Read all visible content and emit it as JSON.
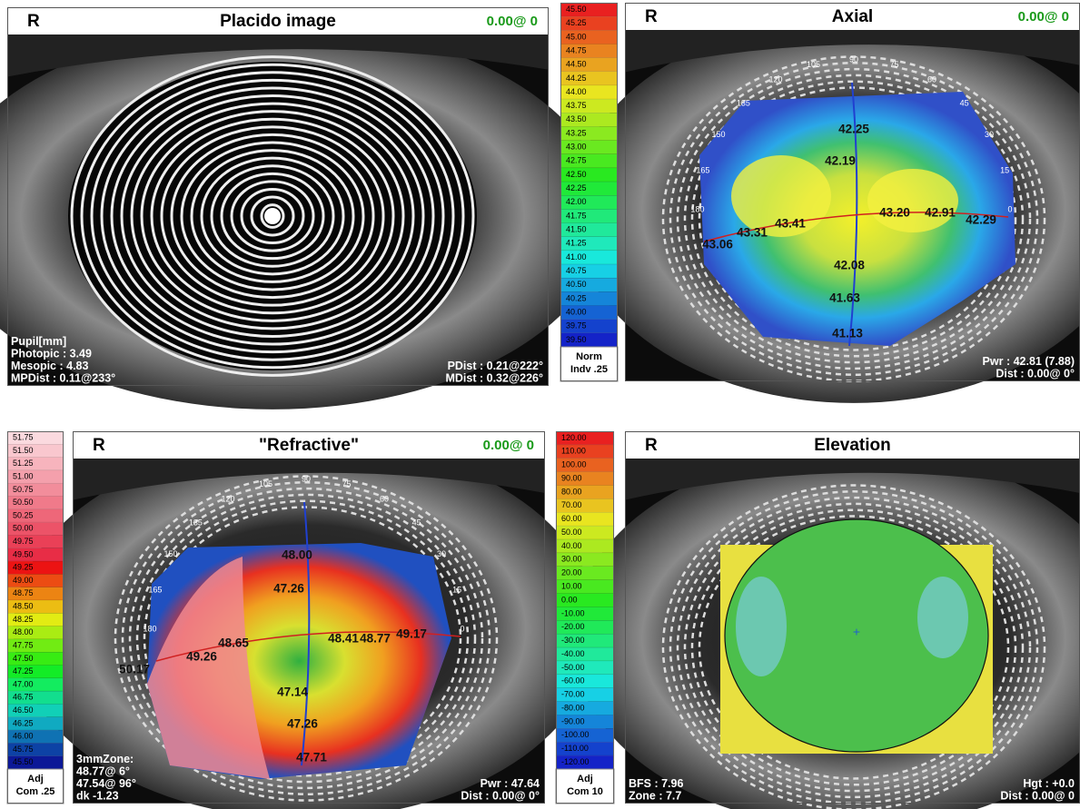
{
  "panels": [
    {
      "eye": "R",
      "title": "Placido image",
      "offset": "0.00@ 0",
      "overlay_left": [
        "Pupil[mm]",
        "Photopic : 3.49",
        "Mesopic : 4.83",
        "MPDist : 0.11@233°"
      ],
      "overlay_right": [
        "PDist : 0.21@222°",
        "MDist : 0.32@226°"
      ]
    },
    {
      "eye": "R",
      "title": "Axial",
      "offset": "0.00@ 0",
      "angles": [
        "90",
        "105",
        "75",
        "120",
        "60",
        "135",
        "45",
        "150",
        "30",
        "165",
        "15",
        "180",
        "0"
      ],
      "map_values": [
        "42.25",
        "42.19",
        "43.41",
        "43.31",
        "43.06",
        "43.20",
        "42.91",
        "42.29",
        "42.08",
        "41.63",
        "41.13"
      ],
      "overlay_left": [],
      "overlay_right": [
        "Pwr : 42.81 (7.88)",
        "Dist : 0.00@ 0°"
      ]
    },
    {
      "eye": "R",
      "title": "\"Refractive\"",
      "offset": "0.00@ 0",
      "angles": [
        "90",
        "105",
        "75",
        "120",
        "60",
        "135",
        "45",
        "150",
        "30",
        "165",
        "15",
        "180",
        "0"
      ],
      "map_values": [
        "48.00",
        "47.26",
        "48.41",
        "48.77",
        "49.17",
        "48.65",
        "49.26",
        "50.17",
        "47.14",
        "47.26",
        "47.71"
      ],
      "overlay_left": [
        "3mmZone:",
        "48.77@ 6°",
        "47.54@ 96°",
        "dk -1.23"
      ],
      "overlay_right": [
        "Pwr : 47.64",
        "Dist : 0.00@ 0°"
      ]
    },
    {
      "eye": "R",
      "title": "Elevation",
      "overlay_left": [
        "BFS : 7.96",
        "Zone : 7.7"
      ],
      "overlay_right": [
        "Hgt : +0.0",
        "Dist : 0.00@ 0"
      ]
    }
  ],
  "scales": [
    {
      "values": [
        "45.50",
        "45.25",
        "45.00",
        "44.75",
        "44.50",
        "44.25",
        "44.00",
        "43.75",
        "43.50",
        "43.25",
        "43.00",
        "42.75",
        "42.50",
        "42.25",
        "42.00",
        "41.75",
        "41.50",
        "41.25",
        "41.00",
        "40.75",
        "40.50",
        "40.25",
        "40.00",
        "39.75",
        "39.50"
      ],
      "footer": [
        "Norm",
        "Indv .25"
      ]
    },
    {
      "values": [
        "51.75",
        "51.50",
        "51.25",
        "51.00",
        "50.75",
        "50.50",
        "50.25",
        "50.00",
        "49.75",
        "49.50",
        "49.25",
        "49.00",
        "48.75",
        "48.50",
        "48.25",
        "48.00",
        "47.75",
        "47.50",
        "47.25",
        "47.00",
        "46.75",
        "46.50",
        "46.25",
        "46.00",
        "45.75",
        "45.50"
      ],
      "footer": [
        "Adj",
        "Com .25"
      ]
    },
    {
      "values": [
        "120.00",
        "110.00",
        "100.00",
        "90.00",
        "80.00",
        "70.00",
        "60.00",
        "50.00",
        "40.00",
        "30.00",
        "20.00",
        "10.00",
        "0.00",
        "-10.00",
        "-20.00",
        "-30.00",
        "-40.00",
        "-50.00",
        "-60.00",
        "-70.00",
        "-80.00",
        "-90.00",
        "-100.00",
        "-110.00",
        "-120.00"
      ],
      "footer": [
        "Adj",
        "Com 10"
      ]
    }
  ]
}
